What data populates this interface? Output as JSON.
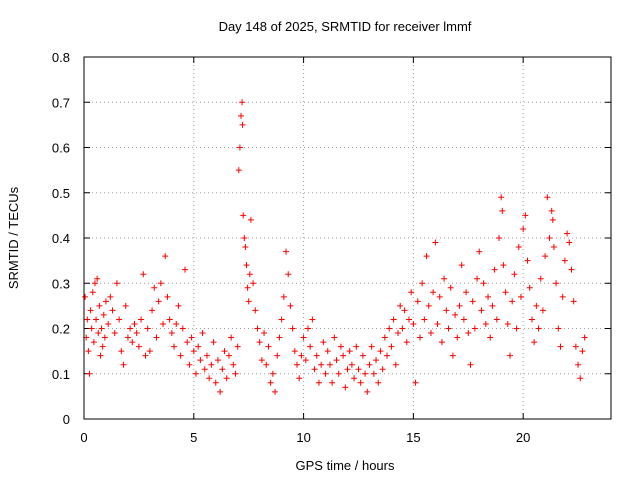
{
  "chart_data": {
    "type": "scatter",
    "title": "Day 148 of 2025, SRMTID for receiver lmmf",
    "xlabel": "GPS time / hours",
    "ylabel": "SRMTID / TECUs",
    "xlim": [
      0,
      24
    ],
    "ylim": [
      0,
      0.8
    ],
    "xticks": [
      0,
      5,
      10,
      15,
      20
    ],
    "xtick_labels": [
      "0",
      "5",
      "10",
      "15",
      "20"
    ],
    "yticks": [
      0,
      0.1,
      0.2,
      0.3,
      0.4,
      0.5,
      0.6,
      0.7,
      0.8
    ],
    "ytick_labels": [
      "0",
      "0.1",
      "0.2",
      "0.3",
      "0.4",
      "0.5",
      "0.6",
      "0.7",
      "0.8"
    ],
    "grid": true,
    "marker": "plus",
    "series": [
      {
        "name": "SRMTID",
        "color": "#ff0000",
        "points": [
          [
            0.05,
            0.27
          ],
          [
            0.1,
            0.18
          ],
          [
            0.15,
            0.22
          ],
          [
            0.2,
            0.15
          ],
          [
            0.25,
            0.1
          ],
          [
            0.3,
            0.24
          ],
          [
            0.35,
            0.2
          ],
          [
            0.4,
            0.28
          ],
          [
            0.45,
            0.17
          ],
          [
            0.5,
            0.3
          ],
          [
            0.55,
            0.22
          ],
          [
            0.6,
            0.31
          ],
          [
            0.65,
            0.19
          ],
          [
            0.7,
            0.25
          ],
          [
            0.75,
            0.14
          ],
          [
            0.8,
            0.2
          ],
          [
            0.85,
            0.16
          ],
          [
            0.9,
            0.23
          ],
          [
            0.95,
            0.18
          ],
          [
            1.0,
            0.26
          ],
          [
            1.1,
            0.21
          ],
          [
            1.2,
            0.27
          ],
          [
            1.3,
            0.24
          ],
          [
            1.4,
            0.19
          ],
          [
            1.5,
            0.3
          ],
          [
            1.6,
            0.22
          ],
          [
            1.7,
            0.15
          ],
          [
            1.8,
            0.12
          ],
          [
            1.9,
            0.25
          ],
          [
            2.0,
            0.18
          ],
          [
            2.1,
            0.2
          ],
          [
            2.2,
            0.17
          ],
          [
            2.3,
            0.21
          ],
          [
            2.4,
            0.19
          ],
          [
            2.5,
            0.16
          ],
          [
            2.6,
            0.22
          ],
          [
            2.7,
            0.32
          ],
          [
            2.8,
            0.14
          ],
          [
            2.9,
            0.2
          ],
          [
            3.0,
            0.15
          ],
          [
            3.1,
            0.24
          ],
          [
            3.2,
            0.29
          ],
          [
            3.3,
            0.18
          ],
          [
            3.4,
            0.26
          ],
          [
            3.5,
            0.3
          ],
          [
            3.6,
            0.21
          ],
          [
            3.7,
            0.36
          ],
          [
            3.8,
            0.27
          ],
          [
            3.9,
            0.22
          ],
          [
            4.0,
            0.19
          ],
          [
            4.1,
            0.16
          ],
          [
            4.2,
            0.21
          ],
          [
            4.3,
            0.25
          ],
          [
            4.4,
            0.14
          ],
          [
            4.5,
            0.2
          ],
          [
            4.6,
            0.33
          ],
          [
            4.7,
            0.17
          ],
          [
            4.8,
            0.12
          ],
          [
            4.9,
            0.18
          ],
          [
            5.0,
            0.15
          ],
          [
            5.1,
            0.1
          ],
          [
            5.2,
            0.16
          ],
          [
            5.3,
            0.13
          ],
          [
            5.4,
            0.19
          ],
          [
            5.5,
            0.11
          ],
          [
            5.6,
            0.14
          ],
          [
            5.7,
            0.09
          ],
          [
            5.8,
            0.12
          ],
          [
            5.9,
            0.17
          ],
          [
            6.0,
            0.08
          ],
          [
            6.1,
            0.13
          ],
          [
            6.2,
            0.06
          ],
          [
            6.3,
            0.11
          ],
          [
            6.4,
            0.15
          ],
          [
            6.5,
            0.09
          ],
          [
            6.6,
            0.14
          ],
          [
            6.7,
            0.18
          ],
          [
            6.8,
            0.12
          ],
          [
            6.9,
            0.1
          ],
          [
            7.0,
            0.16
          ],
          [
            7.05,
            0.55
          ],
          [
            7.1,
            0.6
          ],
          [
            7.15,
            0.67
          ],
          [
            7.2,
            0.7
          ],
          [
            7.22,
            0.65
          ],
          [
            7.25,
            0.45
          ],
          [
            7.3,
            0.4
          ],
          [
            7.35,
            0.38
          ],
          [
            7.4,
            0.34
          ],
          [
            7.45,
            0.29
          ],
          [
            7.5,
            0.26
          ],
          [
            7.55,
            0.32
          ],
          [
            7.6,
            0.44
          ],
          [
            7.7,
            0.3
          ],
          [
            7.8,
            0.24
          ],
          [
            7.9,
            0.2
          ],
          [
            8.0,
            0.17
          ],
          [
            8.1,
            0.13
          ],
          [
            8.2,
            0.19
          ],
          [
            8.3,
            0.12
          ],
          [
            8.4,
            0.16
          ],
          [
            8.5,
            0.08
          ],
          [
            8.6,
            0.1
          ],
          [
            8.7,
            0.06
          ],
          [
            8.8,
            0.14
          ],
          [
            8.9,
            0.18
          ],
          [
            9.0,
            0.22
          ],
          [
            9.1,
            0.27
          ],
          [
            9.2,
            0.37
          ],
          [
            9.3,
            0.32
          ],
          [
            9.4,
            0.25
          ],
          [
            9.5,
            0.2
          ],
          [
            9.6,
            0.15
          ],
          [
            9.7,
            0.12
          ],
          [
            9.8,
            0.09
          ],
          [
            9.9,
            0.14
          ],
          [
            10.0,
            0.18
          ],
          [
            10.1,
            0.13
          ],
          [
            10.2,
            0.2
          ],
          [
            10.3,
            0.16
          ],
          [
            10.4,
            0.22
          ],
          [
            10.5,
            0.11
          ],
          [
            10.6,
            0.14
          ],
          [
            10.7,
            0.08
          ],
          [
            10.8,
            0.12
          ],
          [
            10.9,
            0.17
          ],
          [
            11.0,
            0.1
          ],
          [
            11.1,
            0.15
          ],
          [
            11.2,
            0.12
          ],
          [
            11.3,
            0.08
          ],
          [
            11.4,
            0.18
          ],
          [
            11.5,
            0.13
          ],
          [
            11.6,
            0.1
          ],
          [
            11.7,
            0.16
          ],
          [
            11.8,
            0.14
          ],
          [
            11.9,
            0.07
          ],
          [
            12.0,
            0.11
          ],
          [
            12.1,
            0.15
          ],
          [
            12.2,
            0.12
          ],
          [
            12.3,
            0.09
          ],
          [
            12.4,
            0.16
          ],
          [
            12.5,
            0.11
          ],
          [
            12.6,
            0.08
          ],
          [
            12.7,
            0.14
          ],
          [
            12.8,
            0.1
          ],
          [
            12.9,
            0.06
          ],
          [
            13.0,
            0.12
          ],
          [
            13.1,
            0.16
          ],
          [
            13.2,
            0.1
          ],
          [
            13.3,
            0.13
          ],
          [
            13.4,
            0.08
          ],
          [
            13.5,
            0.15
          ],
          [
            13.6,
            0.11
          ],
          [
            13.7,
            0.18
          ],
          [
            13.8,
            0.14
          ],
          [
            13.9,
            0.2
          ],
          [
            14.0,
            0.16
          ],
          [
            14.1,
            0.22
          ],
          [
            14.2,
            0.12
          ],
          [
            14.3,
            0.19
          ],
          [
            14.4,
            0.25
          ],
          [
            14.5,
            0.2
          ],
          [
            14.6,
            0.24
          ],
          [
            14.7,
            0.17
          ],
          [
            14.8,
            0.22
          ],
          [
            14.9,
            0.28
          ],
          [
            15.0,
            0.21
          ],
          [
            15.1,
            0.08
          ],
          [
            15.2,
            0.26
          ],
          [
            15.3,
            0.18
          ],
          [
            15.4,
            0.3
          ],
          [
            15.5,
            0.22
          ],
          [
            15.6,
            0.36
          ],
          [
            15.7,
            0.25
          ],
          [
            15.8,
            0.19
          ],
          [
            15.9,
            0.28
          ],
          [
            16.0,
            0.39
          ],
          [
            16.1,
            0.21
          ],
          [
            16.2,
            0.27
          ],
          [
            16.3,
            0.17
          ],
          [
            16.4,
            0.31
          ],
          [
            16.5,
            0.24
          ],
          [
            16.6,
            0.2
          ],
          [
            16.7,
            0.29
          ],
          [
            16.8,
            0.14
          ],
          [
            16.9,
            0.23
          ],
          [
            17.0,
            0.18
          ],
          [
            17.1,
            0.25
          ],
          [
            17.2,
            0.34
          ],
          [
            17.3,
            0.22
          ],
          [
            17.4,
            0.28
          ],
          [
            17.5,
            0.19
          ],
          [
            17.6,
            0.12
          ],
          [
            17.7,
            0.26
          ],
          [
            17.8,
            0.2
          ],
          [
            17.9,
            0.31
          ],
          [
            18.0,
            0.37
          ],
          [
            18.1,
            0.24
          ],
          [
            18.2,
            0.3
          ],
          [
            18.3,
            0.21
          ],
          [
            18.4,
            0.27
          ],
          [
            18.5,
            0.18
          ],
          [
            18.6,
            0.25
          ],
          [
            18.7,
            0.33
          ],
          [
            18.8,
            0.22
          ],
          [
            18.9,
            0.4
          ],
          [
            19.0,
            0.49
          ],
          [
            19.05,
            0.46
          ],
          [
            19.1,
            0.34
          ],
          [
            19.2,
            0.28
          ],
          [
            19.3,
            0.21
          ],
          [
            19.4,
            0.14
          ],
          [
            19.5,
            0.26
          ],
          [
            19.6,
            0.32
          ],
          [
            19.7,
            0.2
          ],
          [
            19.8,
            0.38
          ],
          [
            19.9,
            0.27
          ],
          [
            20.0,
            0.42
          ],
          [
            20.1,
            0.45
          ],
          [
            20.2,
            0.35
          ],
          [
            20.3,
            0.29
          ],
          [
            20.4,
            0.22
          ],
          [
            20.5,
            0.17
          ],
          [
            20.6,
            0.25
          ],
          [
            20.7,
            0.2
          ],
          [
            20.8,
            0.31
          ],
          [
            20.9,
            0.24
          ],
          [
            21.0,
            0.36
          ],
          [
            21.1,
            0.49
          ],
          [
            21.2,
            0.4
          ],
          [
            21.3,
            0.46
          ],
          [
            21.35,
            0.44
          ],
          [
            21.4,
            0.38
          ],
          [
            21.5,
            0.3
          ],
          [
            21.6,
            0.2
          ],
          [
            21.7,
            0.16
          ],
          [
            21.8,
            0.27
          ],
          [
            21.9,
            0.35
          ],
          [
            22.0,
            0.41
          ],
          [
            22.1,
            0.39
          ],
          [
            22.2,
            0.33
          ],
          [
            22.3,
            0.26
          ],
          [
            22.4,
            0.16
          ],
          [
            22.5,
            0.12
          ],
          [
            22.6,
            0.09
          ],
          [
            22.7,
            0.15
          ],
          [
            22.8,
            0.18
          ]
        ]
      }
    ]
  }
}
